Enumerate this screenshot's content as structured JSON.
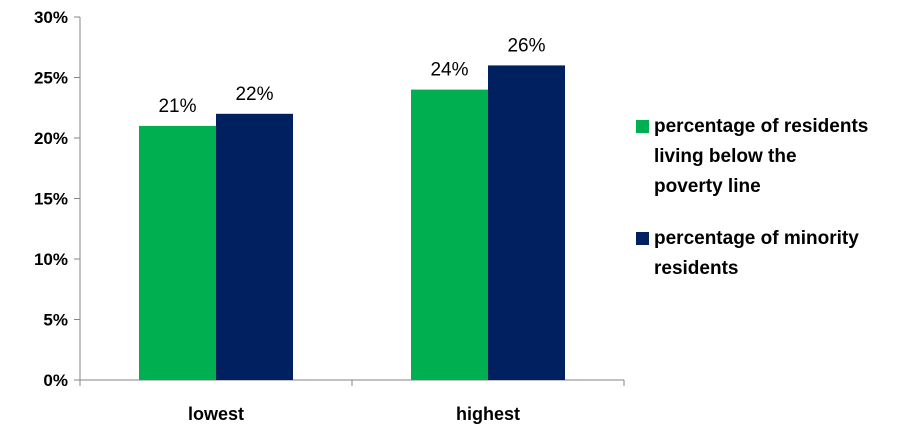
{
  "chart_data": {
    "type": "bar",
    "categories": [
      "lowest",
      "highest"
    ],
    "series": [
      {
        "name": "percentage of residents living below the poverty line",
        "values": [
          21,
          24
        ],
        "color": "#00b050",
        "value_labels": [
          "21%",
          "24%"
        ]
      },
      {
        "name": "percentage of minority residents",
        "values": [
          22,
          26
        ],
        "color": "#002060",
        "value_labels": [
          "22%",
          "26%"
        ]
      }
    ],
    "y_ticks": [
      {
        "value": 0,
        "label": "0%"
      },
      {
        "value": 5,
        "label": "5%"
      },
      {
        "value": 10,
        "label": "10%"
      },
      {
        "value": 15,
        "label": "15%"
      },
      {
        "value": 20,
        "label": "20%"
      },
      {
        "value": 25,
        "label": "25%"
      },
      {
        "value": 30,
        "label": "30%"
      }
    ],
    "ylim": [
      0,
      30
    ],
    "grid": false,
    "legend_position": "right",
    "legend_lines": [
      [
        "percentage of residents",
        "living below the",
        "poverty line"
      ],
      [
        "percentage of minority",
        "residents"
      ]
    ]
  }
}
